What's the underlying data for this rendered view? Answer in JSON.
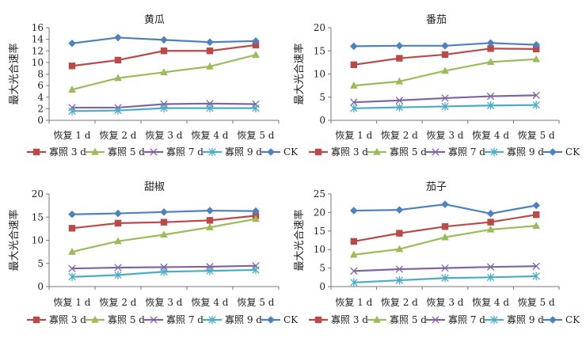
{
  "chart_data": [
    {
      "type": "line",
      "title": "黄瓜",
      "xlabel": "",
      "ylabel": "最大光合速率",
      "categories": [
        "恢复 1 d",
        "恢复 2 d",
        "恢复 3 d",
        "恢复 4 d",
        "恢复 5 d"
      ],
      "ylim": [
        0,
        16
      ],
      "yticks": [
        0,
        2,
        4,
        6,
        8,
        10,
        12,
        14,
        16
      ],
      "series": [
        {
          "name": "寡照 3 d",
          "values": [
            9.4,
            10.4,
            12.0,
            12.0,
            13.0
          ]
        },
        {
          "name": "寡照 5 d",
          "values": [
            5.3,
            7.3,
            8.3,
            9.3,
            11.3
          ]
        },
        {
          "name": "寡照 7 d",
          "values": [
            2.2,
            2.2,
            2.8,
            2.9,
            2.8
          ]
        },
        {
          "name": "寡照 9 d",
          "values": [
            1.6,
            1.7,
            2.1,
            2.1,
            2.1
          ]
        },
        {
          "name": "CK",
          "values": [
            13.3,
            14.3,
            13.9,
            13.5,
            13.7
          ]
        }
      ],
      "legend_position": "bottom",
      "grid": false
    },
    {
      "type": "line",
      "title": "番茄",
      "xlabel": "",
      "ylabel": "最大光合速率",
      "categories": [
        "恢复 1 d",
        "恢复 2 d",
        "恢复 3 d",
        "恢复 4 d",
        "恢复 5 d"
      ],
      "ylim": [
        0,
        20
      ],
      "yticks": [
        0,
        5,
        10,
        15,
        20
      ],
      "series": [
        {
          "name": "寡照 3 d",
          "values": [
            12.0,
            13.4,
            14.2,
            15.5,
            15.4
          ]
        },
        {
          "name": "寡照 5 d",
          "values": [
            7.5,
            8.4,
            10.7,
            12.6,
            13.2
          ]
        },
        {
          "name": "寡照 7 d",
          "values": [
            3.9,
            4.3,
            4.8,
            5.2,
            5.4
          ]
        },
        {
          "name": "寡照 9 d",
          "values": [
            2.6,
            2.8,
            3.0,
            3.2,
            3.3
          ]
        },
        {
          "name": "CK",
          "values": [
            16.0,
            16.1,
            16.1,
            16.7,
            16.3
          ]
        }
      ],
      "legend_position": "bottom",
      "grid": false
    },
    {
      "type": "line",
      "title": "甜椒",
      "xlabel": "",
      "ylabel": "最大光合速率",
      "categories": [
        "恢复 1 d",
        "恢复 2 d",
        "恢复 3 d",
        "恢复 4 d",
        "恢复 5 d"
      ],
      "ylim": [
        0,
        20
      ],
      "yticks": [
        0,
        5,
        10,
        15,
        20
      ],
      "series": [
        {
          "name": "寡照 3 d",
          "values": [
            12.6,
            13.7,
            13.9,
            14.3,
            15.3
          ]
        },
        {
          "name": "寡照 5 d",
          "values": [
            7.5,
            9.8,
            11.2,
            12.8,
            14.6
          ]
        },
        {
          "name": "寡照 7 d",
          "values": [
            3.9,
            4.1,
            4.2,
            4.3,
            4.5
          ]
        },
        {
          "name": "寡照 9 d",
          "values": [
            2.1,
            2.5,
            3.2,
            3.4,
            3.6
          ]
        },
        {
          "name": "CK",
          "values": [
            15.6,
            15.8,
            16.1,
            16.4,
            16.3
          ]
        }
      ],
      "legend_position": "bottom",
      "grid": false
    },
    {
      "type": "line",
      "title": "茄子",
      "xlabel": "",
      "ylabel": "最大光合速率",
      "categories": [
        "恢复 1 d",
        "恢复 2 d",
        "恢复 3 d",
        "恢复 4 d",
        "恢复 5 d"
      ],
      "ylim": [
        0,
        25
      ],
      "yticks": [
        0,
        5,
        10,
        15,
        20,
        25
      ],
      "series": [
        {
          "name": "寡照 3 d",
          "values": [
            12.2,
            14.4,
            16.2,
            17.4,
            19.4
          ]
        },
        {
          "name": "寡照 5 d",
          "values": [
            8.6,
            10.1,
            13.3,
            15.4,
            16.4
          ]
        },
        {
          "name": "寡照 7 d",
          "values": [
            4.2,
            4.7,
            5.0,
            5.3,
            5.5
          ]
        },
        {
          "name": "寡照 9 d",
          "values": [
            1.1,
            1.7,
            2.3,
            2.5,
            2.8
          ]
        },
        {
          "name": "CK",
          "values": [
            20.5,
            20.7,
            22.2,
            19.7,
            21.9
          ]
        }
      ],
      "legend_position": "bottom",
      "grid": false
    }
  ],
  "style": {
    "series_colors": [
      "#b94a4a",
      "#9cbb5a",
      "#8064a2",
      "#4bacc6",
      "#4f81bd"
    ],
    "series_markers": [
      "square",
      "triangle",
      "x",
      "asterisk",
      "diamond"
    ],
    "axis_color": "#777777",
    "text_color": "#222222"
  }
}
